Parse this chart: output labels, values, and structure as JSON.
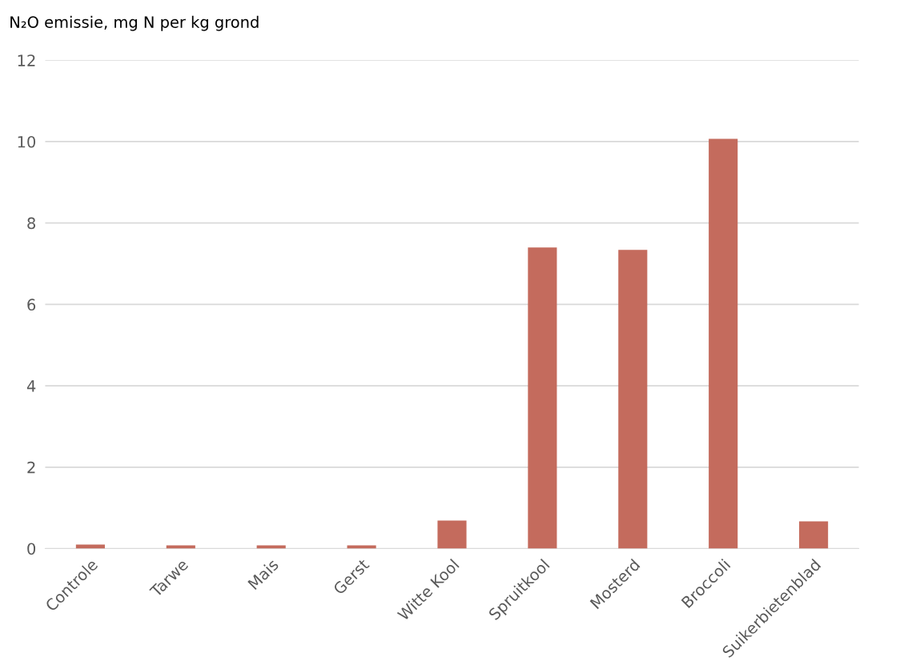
{
  "chart_data": {
    "type": "bar",
    "ylabel": "N₂O emissie, mg N per kg grond",
    "categories": [
      "Controle",
      "Tarwe",
      "Mais",
      "Gerst",
      "Witte Kool",
      "Spruitkool",
      "Mosterd",
      "Broccoli",
      "Suikerbietenblad"
    ],
    "values": [
      0.1,
      0.08,
      0.08,
      0.08,
      0.69,
      7.4,
      7.34,
      10.07,
      0.67
    ],
    "color": "#c46b5d",
    "ylim": [
      0,
      12
    ],
    "yticks": [
      0,
      2,
      4,
      6,
      8,
      10,
      12
    ],
    "grid": "y"
  }
}
